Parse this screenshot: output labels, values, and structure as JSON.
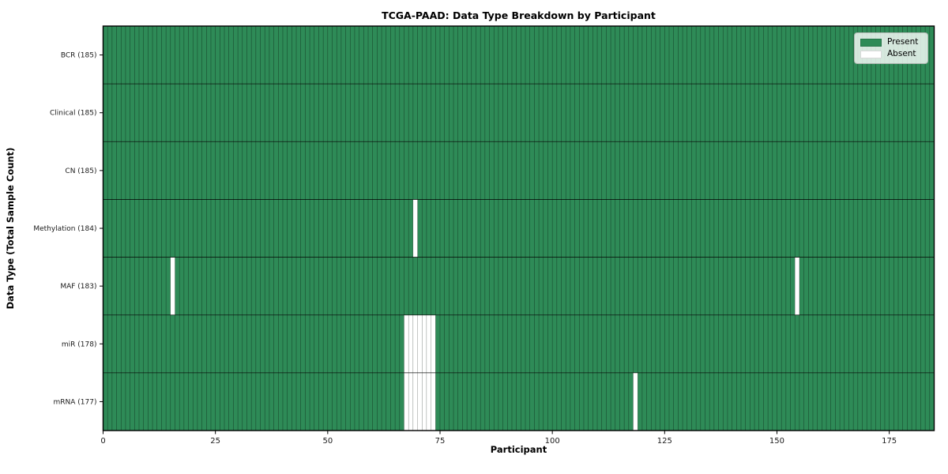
{
  "chart_data": {
    "type": "heatmap",
    "title": "TCGA-PAAD: Data Type Breakdown by Participant",
    "xlabel": "Participant",
    "ylabel": "Data Type (Total Sample Count)",
    "x_ticks": [
      0,
      25,
      50,
      75,
      100,
      125,
      150,
      175
    ],
    "x_range": [
      0,
      185
    ],
    "n_participants": 185,
    "grid": true,
    "legend_position": "upper right",
    "rows": [
      {
        "label": "BCR (185)",
        "data_type": "BCR",
        "present_count": 185,
        "absent_participants": []
      },
      {
        "label": "Clinical (185)",
        "data_type": "Clinical",
        "present_count": 185,
        "absent_participants": []
      },
      {
        "label": "CN (185)",
        "data_type": "CN",
        "present_count": 185,
        "absent_participants": []
      },
      {
        "label": "Methylation (184)",
        "data_type": "Methylation",
        "present_count": 184,
        "absent_participants": [
          69
        ]
      },
      {
        "label": "MAF (183)",
        "data_type": "MAF",
        "present_count": 183,
        "absent_participants": [
          15,
          154
        ]
      },
      {
        "label": "miR (178)",
        "data_type": "miR",
        "present_count": 178,
        "absent_participants": [
          67,
          68,
          69,
          70,
          71,
          72,
          73
        ]
      },
      {
        "label": "mRNA (177)",
        "data_type": "mRNA",
        "present_count": 177,
        "absent_participants": [
          67,
          68,
          69,
          70,
          71,
          72,
          73,
          118
        ]
      }
    ],
    "legend": [
      {
        "label": "Present",
        "color": "#2e8b57"
      },
      {
        "label": "Absent",
        "color": "#ffffff"
      }
    ],
    "colors": {
      "present": "#2e8b57",
      "absent": "#ffffff",
      "cell_edge_on_green": "rgba(0,0,0,0.5)",
      "cell_edge_on_white": "rgba(0,0,0,0.28)",
      "row_separator": "rgba(0,0,0,0.85)",
      "frame": "#000000"
    }
  }
}
